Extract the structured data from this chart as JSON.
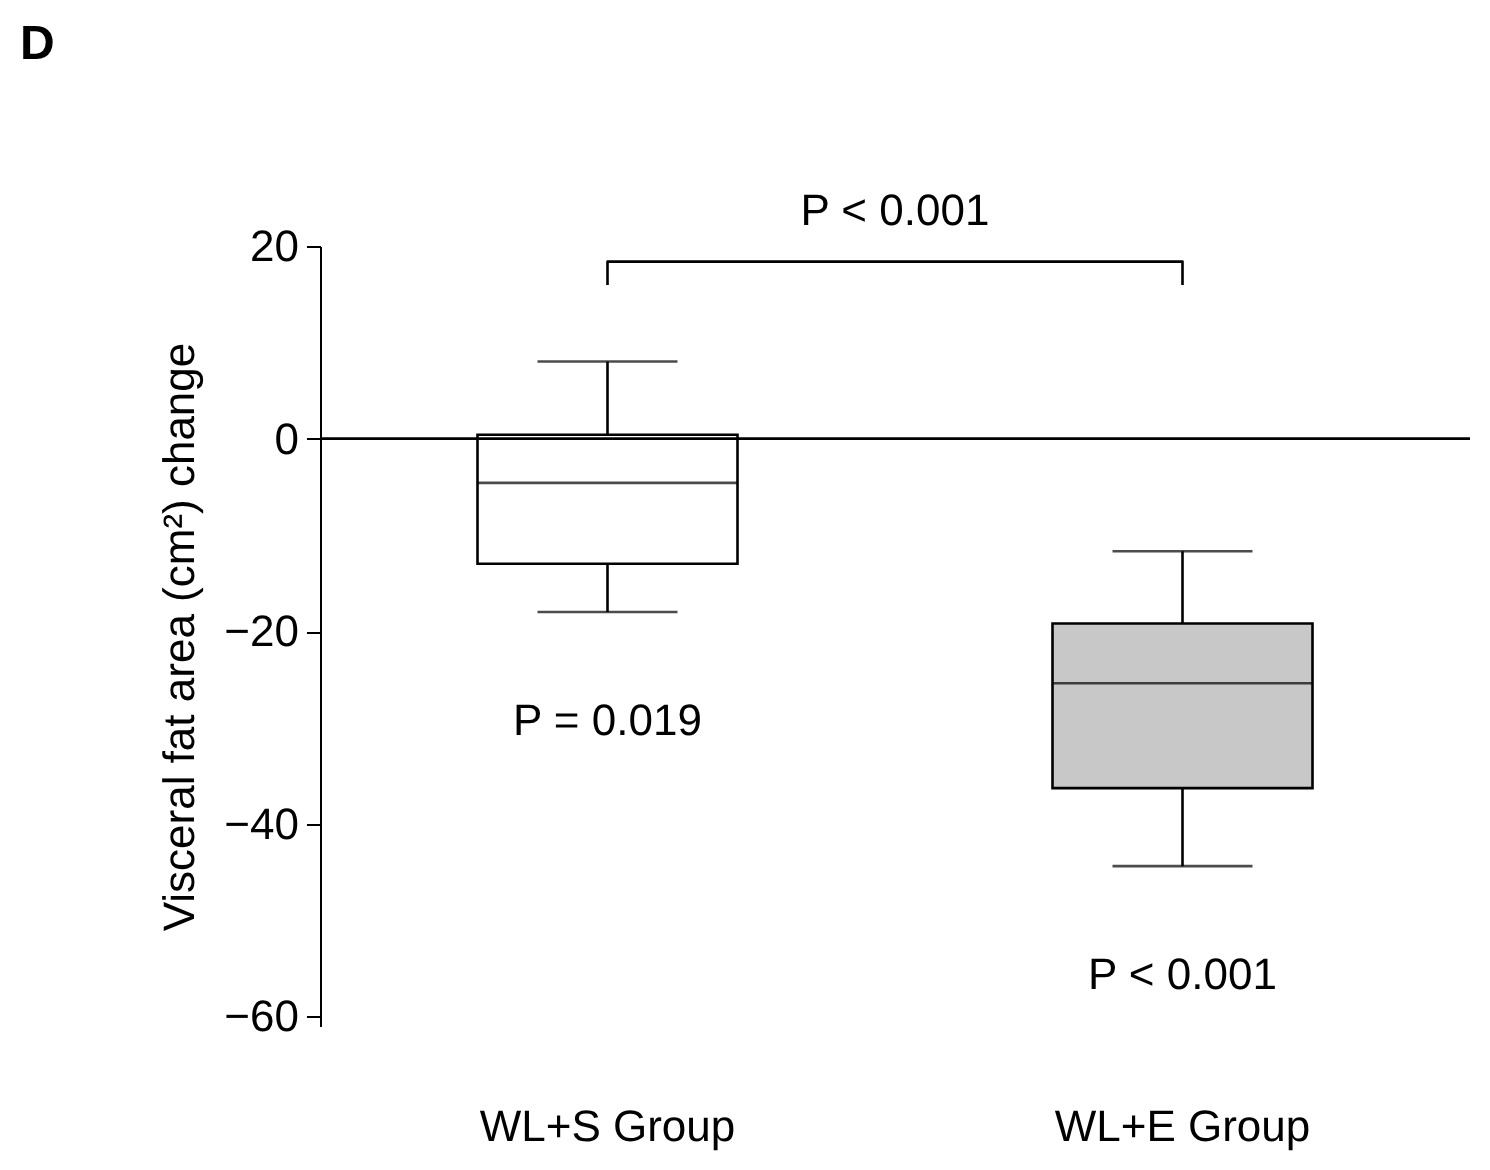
{
  "chart_data": {
    "type": "box",
    "title": "D",
    "ylabel": "Visceral fat area (cm²) change",
    "categories": [
      "WL+S Group",
      "WL+E Group"
    ],
    "boxes": [
      {
        "low": -18,
        "q1": -13,
        "median": -4.6,
        "q3": 0.4,
        "high": 8
      },
      {
        "low": -44.4,
        "q1": -36.3,
        "median": -25.4,
        "q3": -19.2,
        "high": -11.7
      }
    ],
    "colors": [
      "#ffffff",
      "#c8c8c8"
    ],
    "ylim": [
      -61,
      20
    ],
    "yticks": [
      20,
      0,
      -20,
      -40,
      -60
    ],
    "ref_lines": [
      {
        "axis": "y",
        "value": 0,
        "color": "#000000"
      }
    ],
    "annotations": [
      "P < 0.001",
      "P = 0.019",
      "P < 0.001"
    ]
  }
}
